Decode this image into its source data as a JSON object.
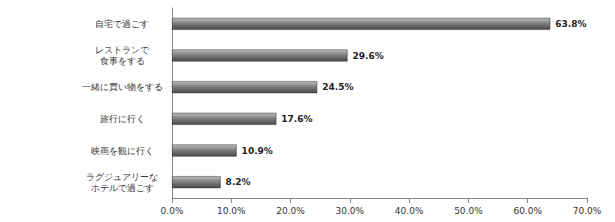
{
  "chart_data": {
    "type": "bar",
    "orientation": "horizontal",
    "categories": [
      "自宅で過ごす",
      "レストランで\n食事をする",
      "一緒に買い物をする",
      "旅行に行く",
      "映画を観に行く",
      "ラグジュアリーな\nホテルで過ごす"
    ],
    "values": [
      63.8,
      29.6,
      24.5,
      17.6,
      10.9,
      8.2
    ],
    "value_labels": [
      "63.8%",
      "29.6%",
      "24.5%",
      "17.6%",
      "10.9%",
      "8.2%"
    ],
    "data_labels": true,
    "color": "#7a7a7a",
    "xlim": [
      0,
      70
    ],
    "xticks": [
      {
        "value": 0,
        "label": "0.0%"
      },
      {
        "value": 10,
        "label": "10.0%"
      },
      {
        "value": 20,
        "label": "20.0%"
      },
      {
        "value": 30,
        "label": "30.0%"
      },
      {
        "value": 40,
        "label": "40.0%"
      },
      {
        "value": 50,
        "label": "50.0%"
      },
      {
        "value": 60,
        "label": "60.0%"
      },
      {
        "value": 70,
        "label": "70.0%"
      }
    ],
    "grid": false
  }
}
